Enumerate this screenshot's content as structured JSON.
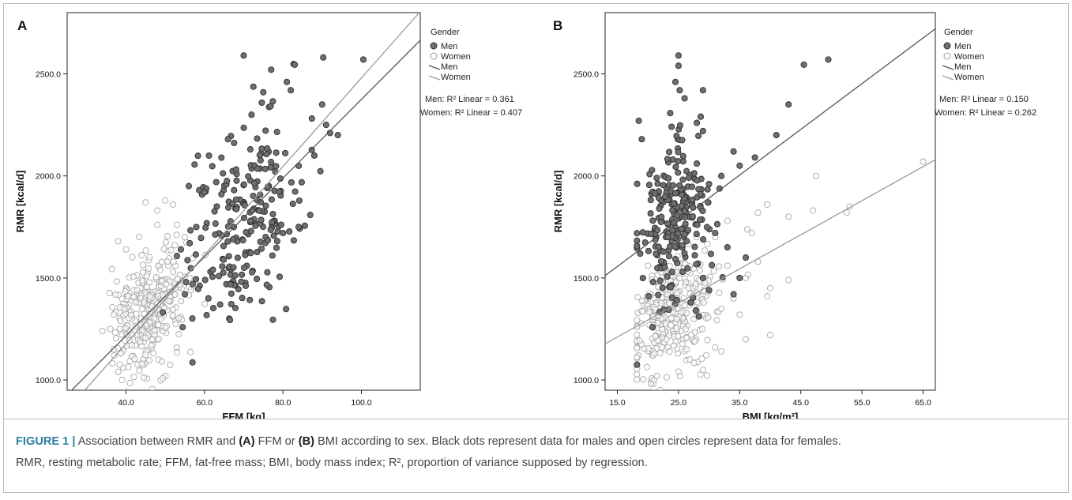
{
  "chart_data": [
    {
      "type": "scatter",
      "panel": "A",
      "xlabel": "FFM [kg]",
      "ylabel": "RMR [kcal/d]",
      "xlim": [
        25,
        115
      ],
      "ylim": [
        950,
        2800
      ],
      "xticks": [
        "40.0",
        "60.0",
        "80.0",
        "100.0"
      ],
      "xtick_values": [
        40,
        60,
        80,
        100
      ],
      "yticks": [
        "1000.0",
        "1500.0",
        "2000.0",
        "2500.0"
      ],
      "ytick_values": [
        1000,
        1500,
        2000,
        2500
      ],
      "legend": {
        "title": "Gender",
        "placement": "right",
        "entries": [
          "Men",
          "Women",
          "Men",
          "Women"
        ]
      },
      "annotations": [
        "Men: R² Linear = 0.361",
        "Women: R² Linear = 0.407"
      ],
      "series": [
        {
          "name": "Men",
          "marker": "filled",
          "color": "#6f6f6f",
          "center": [
            70,
            1780
          ],
          "spread": [
            7.5,
            230
          ],
          "count": 230,
          "extra_points": [
            [
              70,
              2590
            ],
            [
              77,
              2520
            ],
            [
              83,
              2545
            ],
            [
              81,
              2460
            ],
            [
              82,
              2420
            ],
            [
              100.5,
              2570
            ],
            [
              90,
              2350
            ],
            [
              91,
              2250
            ],
            [
              92,
              2210
            ],
            [
              94,
              2200
            ],
            [
              88,
              2100
            ],
            [
              64,
              1370
            ],
            [
              61,
              1400
            ],
            [
              57,
              1470
            ],
            [
              55,
              1420
            ],
            [
              84,
              1750
            ],
            [
              80,
              1720
            ],
            [
              75,
              2410
            ],
            [
              72,
              2300
            ],
            [
              66,
              2180
            ],
            [
              63,
              1970
            ],
            [
              60,
              1920
            ],
            [
              56,
              1950
            ],
            [
              54,
              1640
            ]
          ],
          "fit": {
            "slope": 19.3,
            "intercept": 445
          }
        },
        {
          "name": "Women",
          "marker": "open",
          "color": "#a8a8a8",
          "center": [
            46,
            1340
          ],
          "spread": [
            4.8,
            150
          ],
          "count": 310,
          "extra_points": [
            [
              45,
              1870
            ],
            [
              48,
              1830
            ],
            [
              50,
              1880
            ],
            [
              52,
              1860
            ],
            [
              53,
              1760
            ],
            [
              55,
              1700
            ],
            [
              48,
              1760
            ],
            [
              38,
              1680
            ],
            [
              40,
              1640
            ],
            [
              37,
              1120
            ],
            [
              38,
              1040
            ],
            [
              39,
              1000
            ],
            [
              41,
              985
            ],
            [
              42,
              1015
            ],
            [
              44,
              1080
            ],
            [
              36,
              1250
            ],
            [
              34,
              1240
            ]
          ],
          "fit": {
            "slope": 21.7,
            "intercept": 310
          }
        }
      ]
    },
    {
      "type": "scatter",
      "panel": "B",
      "xlabel": "BMI [kg/m²]",
      "ylabel": "RMR [kcal/d]",
      "xlim": [
        13,
        67
      ],
      "ylim": [
        950,
        2800
      ],
      "xticks": [
        "15.0",
        "25.0",
        "35.0",
        "45.0",
        "55.0",
        "65.0"
      ],
      "xtick_values": [
        15,
        25,
        35,
        45,
        55,
        65
      ],
      "yticks": [
        "1000.0",
        "1500.0",
        "2000.0",
        "2500.0"
      ],
      "ytick_values": [
        1000,
        1500,
        2000,
        2500
      ],
      "legend": {
        "title": "Gender",
        "placement": "right",
        "entries": [
          "Men",
          "Women",
          "Men",
          "Women"
        ]
      },
      "annotations": [
        "Men: R² Linear = 0.150",
        "Women: R² Linear = 0.262"
      ],
      "series": [
        {
          "name": "Men",
          "marker": "filled",
          "color": "#6f6f6f",
          "center": [
            24,
            1750
          ],
          "spread": [
            2.8,
            190
          ],
          "count": 230,
          "extra_points": [
            [
              25,
              2590
            ],
            [
              25,
              2540
            ],
            [
              24.5,
              2460
            ],
            [
              25.2,
              2420
            ],
            [
              26,
              2380
            ],
            [
              29,
              2420
            ],
            [
              45.5,
              2545
            ],
            [
              49.5,
              2570
            ],
            [
              43,
              2350
            ],
            [
              41,
              2200
            ],
            [
              37.5,
              2090
            ],
            [
              35,
              2050
            ],
            [
              34,
              2120
            ],
            [
              32,
              2000
            ],
            [
              36,
              1600
            ],
            [
              35,
              1500
            ],
            [
              34,
              1420
            ],
            [
              33,
              1650
            ],
            [
              31,
              1720
            ],
            [
              30,
              1960
            ],
            [
              29,
              2220
            ],
            [
              28,
              2260
            ],
            [
              18.5,
              2270
            ],
            [
              19,
              2180
            ],
            [
              27,
              1380
            ],
            [
              30,
              1440
            ],
            [
              29,
              1500
            ]
          ],
          "fit": {
            "slope": 22.4,
            "intercept": 1220
          }
        },
        {
          "name": "Women",
          "marker": "open",
          "color": "#a8a8a8",
          "center": [
            24,
            1330
          ],
          "spread": [
            3.6,
            140
          ],
          "count": 300,
          "extra_points": [
            [
              65,
              2070
            ],
            [
              53,
              1850
            ],
            [
              52.5,
              1820
            ],
            [
              47,
              1830
            ],
            [
              47.5,
              2000
            ],
            [
              39.5,
              1860
            ],
            [
              38,
              1820
            ],
            [
              37,
              1720
            ],
            [
              43,
              1800
            ],
            [
              43,
              1490
            ],
            [
              40,
              1450
            ],
            [
              39.5,
              1410
            ],
            [
              38,
              1580
            ],
            [
              36,
              1500
            ],
            [
              34,
              1400
            ],
            [
              33,
              1560
            ],
            [
              32,
              1140
            ],
            [
              31,
              1160
            ],
            [
              29,
              1050
            ],
            [
              40,
              1220
            ],
            [
              36,
              1200
            ],
            [
              35,
              1320
            ],
            [
              21,
              1000
            ],
            [
              21.5,
              1020
            ],
            [
              20.5,
              980
            ],
            [
              33,
              1780
            ],
            [
              31,
              1700
            ]
          ],
          "fit": {
            "slope": 16.7,
            "intercept": 960
          }
        }
      ]
    }
  ],
  "caption": {
    "label": "FIGURE 1 |",
    "t1": " Association between RMR and ",
    "a": "(A)",
    "t2": " FFM or ",
    "b": "(B)",
    "t3": " BMI according to sex. Black dots represent data for males and open circles represent data for females.",
    "line2": "RMR, resting metabolic rate; FFM, fat-free mass; BMI, body mass index; R², proportion of variance supposed by regression."
  }
}
